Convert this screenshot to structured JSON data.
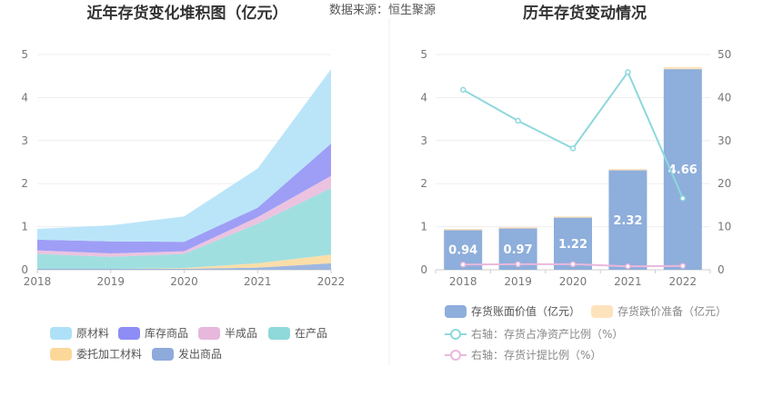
{
  "source_text": "数据来源：恒生聚源",
  "chart_data": [
    {
      "type": "area",
      "title": "近年存货变化堆积图（亿元）",
      "categories": [
        "2018",
        "2019",
        "2020",
        "2021",
        "2022"
      ],
      "ylim": [
        0,
        5
      ],
      "yticks": [
        "0",
        "1",
        "2",
        "3",
        "4",
        "5"
      ],
      "grid": true,
      "legend_position": "bottom",
      "series": [
        {
          "name": "发出商品",
          "color": "#8eaadb",
          "values": [
            0.02,
            0.02,
            0.02,
            0.05,
            0.15
          ]
        },
        {
          "name": "委托加工材料",
          "color": "#fbd89a",
          "values": [
            0.0,
            0.0,
            0.02,
            0.1,
            0.2
          ]
        },
        {
          "name": "在产品",
          "color": "#8fd9da",
          "values": [
            0.35,
            0.28,
            0.33,
            0.92,
            1.55
          ]
        },
        {
          "name": "半成品",
          "color": "#e7b8db",
          "values": [
            0.08,
            0.08,
            0.06,
            0.15,
            0.28
          ]
        },
        {
          "name": "库存商品",
          "color": "#8d8df5",
          "values": [
            0.25,
            0.28,
            0.22,
            0.22,
            0.75
          ]
        },
        {
          "name": "原材料",
          "color": "#aee1f8",
          "values": [
            0.25,
            0.37,
            0.59,
            0.91,
            1.73
          ]
        }
      ],
      "legend_order": [
        "原材料",
        "库存商品",
        "半成品",
        "在产品",
        "委托加工材料",
        "发出商品"
      ]
    },
    {
      "type": "bar",
      "title": "历年存货变动情况",
      "categories": [
        "2018",
        "2019",
        "2020",
        "2021",
        "2022"
      ],
      "ylim": [
        0,
        5
      ],
      "yticks": [
        "0",
        "1",
        "2",
        "3",
        "4",
        "5"
      ],
      "y2lim": [
        0,
        50
      ],
      "y2ticks": [
        "0",
        "10",
        "20",
        "30",
        "40",
        "50"
      ],
      "grid": true,
      "legend_position": "bottom",
      "bars": {
        "book_value": {
          "name": "存货账面价值（亿元）",
          "color": "#8eaedb",
          "values": [
            0.94,
            0.97,
            1.22,
            2.32,
            4.66
          ],
          "labels": [
            "0.94",
            "0.97",
            "1.22",
            "2.32",
            "4.66"
          ]
        },
        "impairment": {
          "name": "存货跌价准备（亿元）",
          "color": "#fde3bd",
          "values": [
            0.01,
            0.02,
            0.02,
            0.02,
            0.05
          ]
        }
      },
      "lines": {
        "inventory_ratio": {
          "name": "右轴：存货占净资产比例（%）",
          "color": "#8ed8dc",
          "values": [
            41.8,
            34.6,
            28.2,
            45.9,
            16.6
          ]
        },
        "provision_ratio": {
          "name": "右轴：存货计提比例（%）",
          "color": "#eab8dc",
          "values": [
            1.2,
            1.3,
            1.3,
            0.8,
            0.9
          ]
        }
      }
    }
  ]
}
